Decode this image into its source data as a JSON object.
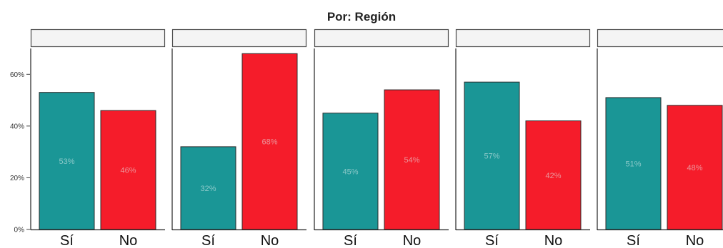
{
  "chart_data": {
    "type": "bar",
    "title": "",
    "subtitle": "Por: Región",
    "ylim": [
      0,
      70
    ],
    "yticks": [
      0,
      20,
      40,
      60
    ],
    "ytick_labels": [
      "0%",
      "20%",
      "40%",
      "60%"
    ],
    "categories": [
      "Sí",
      "No"
    ],
    "colors": {
      "Sí": "#1a9696",
      "No": "#f51c2a"
    },
    "grid": false,
    "panels": [
      {
        "name": "",
        "values": [
          53,
          46
        ]
      },
      {
        "name": "",
        "values": [
          32,
          68
        ]
      },
      {
        "name": "",
        "values": [
          45,
          54
        ]
      },
      {
        "name": "",
        "values": [
          57,
          42
        ]
      },
      {
        "name": "",
        "values": [
          51,
          48
        ]
      }
    ]
  }
}
